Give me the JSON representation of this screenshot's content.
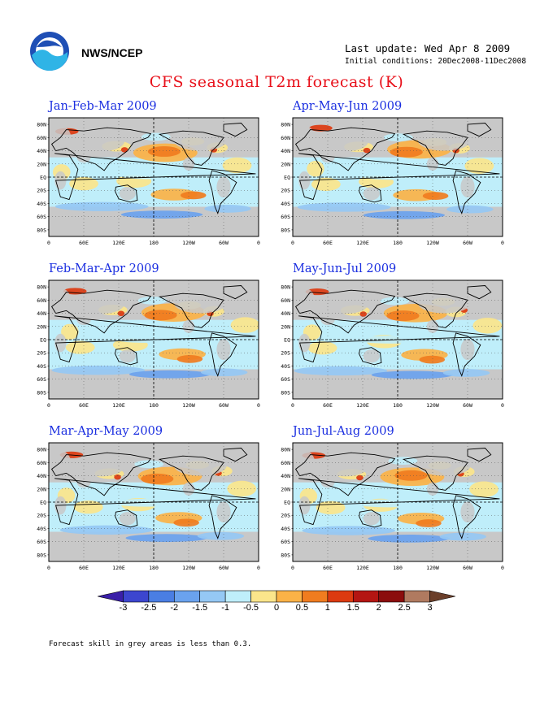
{
  "header": {
    "agency": "NWS/NCEP",
    "last_update": "Last update: Wed Apr 8 2009",
    "initial_conditions": "Initial conditions: 20Dec2008-11Dec2008",
    "title": "CFS seasonal T2m forecast (K)"
  },
  "axes": {
    "lat_labels": [
      "80N",
      "60N",
      "40N",
      "20N",
      "EQ",
      "20S",
      "40S",
      "60S",
      "80S"
    ],
    "lon_labels": [
      "0",
      "60E",
      "120E",
      "180",
      "120W",
      "60W",
      "0"
    ]
  },
  "panels": [
    {
      "title": "Jan-Feb-Mar 2009"
    },
    {
      "title": "Apr-May-Jun 2009"
    },
    {
      "title": "Feb-Mar-Apr 2009"
    },
    {
      "title": "May-Jun-Jul 2009"
    },
    {
      "title": "Mar-Apr-May 2009"
    },
    {
      "title": "Jun-Jul-Aug 2009"
    }
  ],
  "colorbar": {
    "labels": [
      "-3",
      "-2.5",
      "-2",
      "-1.5",
      "-1",
      "-0.5",
      "0",
      "0.5",
      "1",
      "1.5",
      "2",
      "2.5",
      "3"
    ],
    "colors": [
      "#3a1fa8",
      "#3c46cf",
      "#4a7ee3",
      "#6aa2ee",
      "#95c8f4",
      "#bfeefa",
      "#fbe58b",
      "#fbb247",
      "#f07c1f",
      "#dc3a10",
      "#b41512",
      "#8b0d0d",
      "#b07a60",
      "#6b3f2a"
    ],
    "unit": "K"
  },
  "footnote": "Forecast skill in grey areas is less than 0.3."
}
